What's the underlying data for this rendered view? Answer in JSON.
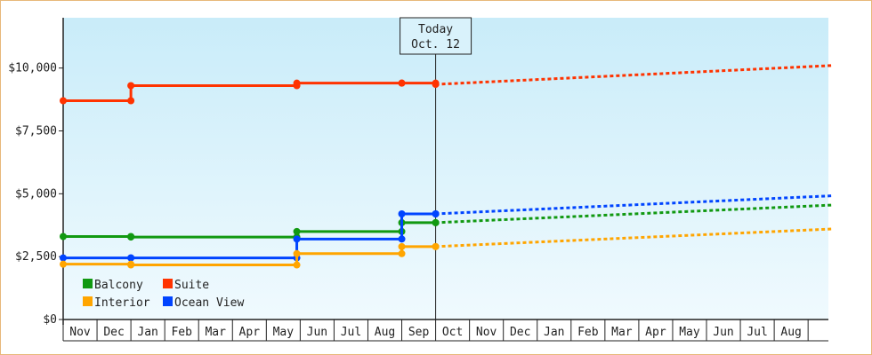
{
  "chart_data": {
    "type": "line",
    "title": "",
    "xlabel": "",
    "ylabel": "",
    "ylim": [
      0,
      12000
    ],
    "y_ticks": [
      {
        "value": 0,
        "label": "$0"
      },
      {
        "value": 2500,
        "label": "$2,500"
      },
      {
        "value": 5000,
        "label": "$5,000"
      },
      {
        "value": 7500,
        "label": "$7,500"
      },
      {
        "value": 10000,
        "label": "$10,000"
      }
    ],
    "months": [
      "Nov",
      "Dec",
      "Jan",
      "Feb",
      "Mar",
      "Apr",
      "May",
      "Jun",
      "Jul",
      "Aug",
      "Sep",
      "Oct",
      "Nov",
      "Dec",
      "Jan",
      "Feb",
      "Mar",
      "Apr",
      "May",
      "Jun",
      "Jul",
      "Aug"
    ],
    "today": {
      "line1": "Today",
      "line2": "Oct. 12",
      "x": 11.0
    },
    "grid": false,
    "legend_position": "bottom-left",
    "background": {
      "top": "#c9ecf9",
      "bottom": "#f0fafe"
    },
    "series": [
      {
        "name": "Suite",
        "color": "#ff3300",
        "steps": [
          [
            0,
            8700
          ],
          [
            2.0,
            9300
          ],
          [
            6.9,
            9400
          ],
          [
            10.0,
            9400
          ],
          [
            11.0,
            9350
          ]
        ],
        "end_x": 11.0,
        "forecast": [
          [
            11.0,
            9350
          ],
          [
            22.7,
            10100
          ]
        ]
      },
      {
        "name": "Balcony",
        "color": "#119911",
        "steps": [
          [
            0,
            3300
          ],
          [
            2.0,
            3280
          ],
          [
            6.9,
            3500
          ],
          [
            10.0,
            3850
          ],
          [
            11.0,
            3850
          ]
        ],
        "end_x": 11.0,
        "forecast": [
          [
            11.0,
            3850
          ],
          [
            22.7,
            4550
          ]
        ]
      },
      {
        "name": "Ocean View",
        "color": "#0044ff",
        "steps": [
          [
            0,
            2450
          ],
          [
            2.0,
            2450
          ],
          [
            6.9,
            3200
          ],
          [
            10.0,
            4200
          ],
          [
            11.0,
            4200
          ]
        ],
        "end_x": 11.0,
        "forecast": [
          [
            11.0,
            4200
          ],
          [
            22.7,
            4920
          ]
        ]
      },
      {
        "name": "Interior",
        "color": "#ffa500",
        "steps": [
          [
            0,
            2200
          ],
          [
            2.0,
            2170
          ],
          [
            6.9,
            2620
          ],
          [
            10.0,
            2900
          ],
          [
            11.0,
            2900
          ]
        ],
        "end_x": 11.0,
        "forecast": [
          [
            11.0,
            2900
          ],
          [
            22.7,
            3600
          ]
        ]
      }
    ],
    "legend_order": [
      "Balcony",
      "Suite",
      "Interior",
      "Ocean View"
    ]
  }
}
